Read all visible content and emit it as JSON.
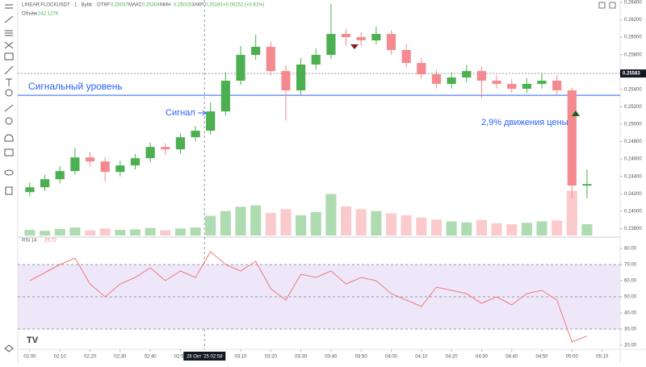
{
  "chart_data": [
    {
      "type": "candlestick",
      "title": "LINEAR:FLOCKUSDT · 1 · Bybit",
      "ohlc": [
        {
          "label": "ОТКР",
          "value": 0.25037
        },
        {
          "label": "МАКС",
          "value": 0.25304
        },
        {
          "label": "МИН",
          "value": 0.25016
        },
        {
          "label": "ЗАКР",
          "value": 0.25183
        }
      ],
      "change": "+0.00152 (+0.61%)",
      "x": [
        0,
        5,
        10,
        15,
        20,
        25,
        30,
        35,
        40,
        45,
        50,
        55,
        60,
        65,
        70,
        75,
        80,
        85,
        90,
        95,
        100,
        105,
        110,
        115,
        120,
        125,
        130,
        135,
        140,
        145,
        150,
        155,
        160,
        165,
        170,
        175,
        180,
        185
      ],
      "open": [
        0.24219,
        0.24275,
        0.24368,
        0.24461,
        0.24618,
        0.24572,
        0.24451,
        0.24526,
        0.24609,
        0.24739,
        0.24711,
        0.2485,
        0.24925,
        0.25147,
        0.255,
        0.25797,
        0.2589,
        0.25611,
        0.25389,
        0.25686,
        0.25797,
        0.26038,
        0.26001,
        0.25964,
        0.26038,
        0.25853,
        0.25704,
        0.25574,
        0.25463,
        0.25537,
        0.25611,
        0.255,
        0.25463,
        0.25407,
        0.25463,
        0.255,
        0.25389,
        0.24294
      ],
      "high": [
        0.2433,
        0.2442,
        0.2452,
        0.2473,
        0.2468,
        0.2462,
        0.2458,
        0.2466,
        0.2479,
        0.2478,
        0.249,
        0.2498,
        0.2525,
        0.256,
        0.259,
        0.2603,
        0.2595,
        0.2568,
        0.2576,
        0.2587,
        0.2638,
        0.261,
        0.2606,
        0.2612,
        0.2608,
        0.2592,
        0.2576,
        0.2562,
        0.256,
        0.2568,
        0.2566,
        0.2556,
        0.2552,
        0.2553,
        0.2558,
        0.2556,
        0.2542,
        0.2448
      ],
      "low": [
        0.2417,
        0.2423,
        0.2432,
        0.2442,
        0.2451,
        0.2434,
        0.244,
        0.2448,
        0.2456,
        0.2465,
        0.2466,
        0.248,
        0.2488,
        0.251,
        0.2545,
        0.2574,
        0.2556,
        0.2504,
        0.2534,
        0.2563,
        0.2575,
        0.259,
        0.259,
        0.2592,
        0.258,
        0.2565,
        0.2552,
        0.2541,
        0.2541,
        0.2548,
        0.253,
        0.2541,
        0.2536,
        0.2536,
        0.2541,
        0.2534,
        0.2415,
        0.2415
      ],
      "close": [
        0.24275,
        0.24368,
        0.24461,
        0.24618,
        0.24572,
        0.24451,
        0.24526,
        0.24609,
        0.24739,
        0.24711,
        0.2485,
        0.24925,
        0.25147,
        0.255,
        0.25797,
        0.2589,
        0.25611,
        0.25389,
        0.25686,
        0.25797,
        0.26038,
        0.26001,
        0.25964,
        0.26038,
        0.25853,
        0.25704,
        0.25574,
        0.25463,
        0.25537,
        0.25611,
        0.255,
        0.25463,
        0.25407,
        0.25463,
        0.255,
        0.25389,
        0.24294,
        0.24312
      ],
      "up_color": "#4caf50",
      "down_color": "#f48a8f",
      "volume": {
        "name": "Объём",
        "value_label": "242.127K",
        "ylim": [
          0,
          5000
        ],
        "values": [
          120,
          100,
          140,
          170,
          110,
          150,
          120,
          130,
          160,
          110,
          150,
          170,
          420,
          520,
          610,
          640,
          480,
          560,
          430,
          500,
          880,
          620,
          560,
          520,
          470,
          430,
          380,
          340,
          300,
          280,
          330,
          260,
          240,
          270,
          300,
          320,
          950,
          242.127
        ]
      },
      "xlim": [
        -4,
        196
      ],
      "xticks": [
        {
          "value": 0,
          "label": "02:00"
        },
        {
          "value": 10,
          "label": "02:10"
        },
        {
          "value": 20,
          "label": "02:20"
        },
        {
          "value": 30,
          "label": "02:30"
        },
        {
          "value": 40,
          "label": "02:40"
        },
        {
          "value": 50,
          "label": "02:50"
        },
        {
          "value": 70,
          "label": "03:10"
        },
        {
          "value": 80,
          "label": "03:20"
        },
        {
          "value": 90,
          "label": "03:30"
        },
        {
          "value": 100,
          "label": "03:40"
        },
        {
          "value": 110,
          "label": "03:50"
        },
        {
          "value": 120,
          "label": "04:00"
        },
        {
          "value": 130,
          "label": "04:10"
        },
        {
          "value": 140,
          "label": "04:20"
        },
        {
          "value": 150,
          "label": "04:30"
        },
        {
          "value": 160,
          "label": "04:40"
        },
        {
          "value": 170,
          "label": "04:50"
        },
        {
          "value": 180,
          "label": "05:00"
        },
        {
          "value": 190,
          "label": "05:10"
        }
      ],
      "ylim": [
        0.2372,
        0.26428
      ],
      "yticks": [
        {
          "value": 0.264,
          "label": "0.26400"
        },
        {
          "value": 0.262,
          "label": "0.26200"
        },
        {
          "value": 0.26,
          "label": "0.26000"
        },
        {
          "value": 0.258,
          "label": "0.25800"
        },
        {
          "value": 0.256,
          "label": "0.25600"
        },
        {
          "value": 0.254,
          "label": "0.25400"
        },
        {
          "value": 0.252,
          "label": "0.25200"
        },
        {
          "value": 0.25,
          "label": "0.25000"
        },
        {
          "value": 0.248,
          "label": "0.24800"
        },
        {
          "value": 0.246,
          "label": "0.24600"
        },
        {
          "value": 0.244,
          "label": "0.24400"
        },
        {
          "value": 0.242,
          "label": "0.24200"
        },
        {
          "value": 0.24,
          "label": "0.24000"
        },
        {
          "value": 0.238,
          "label": "0.23800"
        }
      ],
      "price_line": {
        "value": 0.25583,
        "label": "0.25583"
      },
      "signal_level": {
        "value": 0.25332,
        "label": "Сигнальный уровень",
        "color": "#2962ff"
      },
      "annotations": {
        "signal": "Сигнал",
        "move": "2,9% движения цены"
      },
      "crosshair": {
        "x": 58,
        "label": "28 Окт '25 02:58"
      }
    },
    {
      "type": "line",
      "name": "RSI 14",
      "value_label": "25.72",
      "color": "#f27a7e",
      "x": [
        0,
        5,
        10,
        15,
        20,
        25,
        30,
        35,
        40,
        45,
        50,
        55,
        60,
        65,
        70,
        75,
        80,
        85,
        90,
        95,
        100,
        105,
        110,
        115,
        120,
        125,
        130,
        135,
        140,
        145,
        150,
        155,
        160,
        165,
        170,
        175,
        180,
        185
      ],
      "values": [
        60,
        65,
        70,
        74,
        58,
        50,
        58,
        62,
        68,
        60,
        66,
        62,
        78,
        70,
        66,
        72,
        55,
        48,
        64,
        62,
        66,
        58,
        62,
        60,
        52,
        48,
        44,
        56,
        54,
        52,
        46,
        50,
        45,
        52,
        54,
        48,
        22,
        25.72
      ],
      "ylim": [
        18,
        86
      ],
      "yticks": [
        {
          "value": 80,
          "label": "80.00"
        },
        {
          "value": 70,
          "label": "70.00"
        },
        {
          "value": 60,
          "label": "60.00"
        },
        {
          "value": 50,
          "label": "50.00"
        },
        {
          "value": 40,
          "label": "40.00"
        },
        {
          "value": 30,
          "label": "30.00"
        },
        {
          "value": 20,
          "label": "20.00"
        }
      ],
      "band": [
        30,
        70
      ],
      "band_color": "#ede7f9",
      "levels": [
        30,
        50,
        70
      ]
    }
  ]
}
